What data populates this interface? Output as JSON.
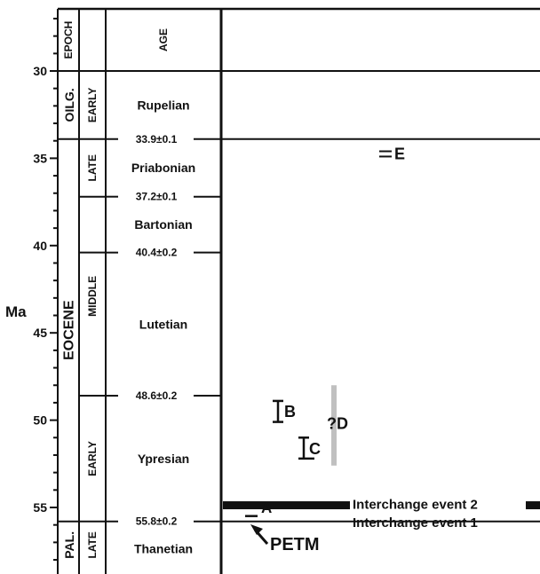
{
  "axis": {
    "label": "Ma",
    "ticks": [
      30,
      35,
      40,
      45,
      50,
      55
    ],
    "range": [
      26.6,
      58.5
    ]
  },
  "headers": {
    "epoch": "EPOCH",
    "age": "AGE"
  },
  "epochs": [
    {
      "label": "OILG.",
      "from": 30,
      "to": 33.9
    },
    {
      "label": "EOCENE",
      "from": 33.9,
      "to": 55.8
    },
    {
      "label": "PAL.",
      "from": 55.8,
      "to": 58.5
    }
  ],
  "subepochs": [
    {
      "label": "EARLY",
      "from": 30,
      "to": 33.9
    },
    {
      "label": "LATE",
      "from": 33.9,
      "to": 37.2
    },
    {
      "label": "MIDDLE",
      "from": 37.2,
      "to": 48.6
    },
    {
      "label": "EARLY",
      "from": 48.6,
      "to": 55.8
    },
    {
      "label": "LATE",
      "from": 55.8,
      "to": 58.5
    }
  ],
  "ages": [
    {
      "label": "Rupelian",
      "from": 30,
      "to": 33.9
    },
    {
      "label": "Priabonian",
      "from": 33.9,
      "to": 37.2
    },
    {
      "label": "Bartonian",
      "from": 37.2,
      "to": 40.4
    },
    {
      "label": "Lutetian",
      "from": 40.4,
      "to": 48.6
    },
    {
      "label": "Ypresian",
      "from": 48.6,
      "to": 55.8
    },
    {
      "label": "Thanetian",
      "from": 55.8,
      "to": 58.5
    }
  ],
  "boundaries": [
    {
      "age": 33.9,
      "label": "33.9±0.1"
    },
    {
      "age": 37.2,
      "label": "37.2±0.1"
    },
    {
      "age": 40.4,
      "label": "40.4±0.2"
    },
    {
      "age": 48.6,
      "label": "48.6±0.2"
    },
    {
      "age": 55.8,
      "label": "55.8±0.2"
    }
  ],
  "events": [
    {
      "id": "A",
      "label": "A",
      "from": 56.0,
      "to": 56.0
    },
    {
      "id": "B",
      "label": "B",
      "from": 49.0,
      "to": 50.0
    },
    {
      "id": "C",
      "label": "C",
      "from": 51.0,
      "to": 52.2
    },
    {
      "id": "E",
      "label": "E",
      "from": 34.6,
      "to": 34.9
    }
  ],
  "uncertain": {
    "label": "?D",
    "from": 48.0,
    "to": 52.6,
    "color": "#c0c0c0"
  },
  "interchange": [
    {
      "label": "Interchange event 2",
      "age": 54.9
    },
    {
      "label": "Interchange event 1",
      "age": 55.8
    }
  ],
  "petm": {
    "label": "PETM"
  },
  "colors": {
    "line": "#111111",
    "background": "#ffffff",
    "uncertain_bar": "#c0c0c0"
  }
}
